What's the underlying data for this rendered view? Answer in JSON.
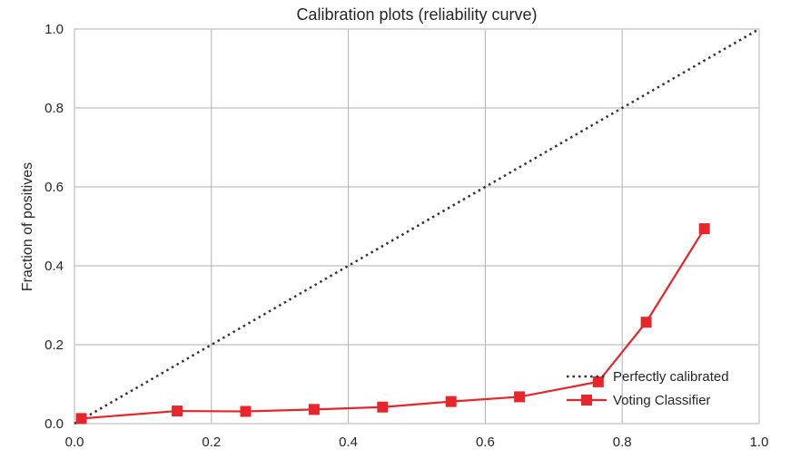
{
  "chart_data": {
    "type": "line",
    "title": "Calibration plots (reliability curve)",
    "xlabel": "",
    "ylabel": "Fraction of positives",
    "xlim": [
      0.0,
      1.0
    ],
    "ylim": [
      0.0,
      1.0
    ],
    "xticks": [
      "0.0",
      "0.2",
      "0.4",
      "0.6",
      "0.8",
      "1.0"
    ],
    "yticks": [
      "0.0",
      "0.2",
      "0.4",
      "0.6",
      "0.8",
      "1.0"
    ],
    "grid": true,
    "legend_position": "lower-right",
    "series": [
      {
        "name": "Perfectly calibrated",
        "style": "dotted",
        "color": "#333333",
        "marker": "none",
        "x": [
          0.0,
          1.0
        ],
        "y": [
          0.0,
          1.0
        ]
      },
      {
        "name": "Voting Classifier",
        "style": "solid",
        "color": "#e8252a",
        "marker": "square",
        "x": [
          0.01,
          0.15,
          0.25,
          0.35,
          0.45,
          0.55,
          0.65,
          0.765,
          0.835,
          0.92
        ],
        "y": [
          0.013,
          0.032,
          0.031,
          0.036,
          0.042,
          0.056,
          0.068,
          0.106,
          0.257,
          0.494
        ]
      }
    ]
  }
}
